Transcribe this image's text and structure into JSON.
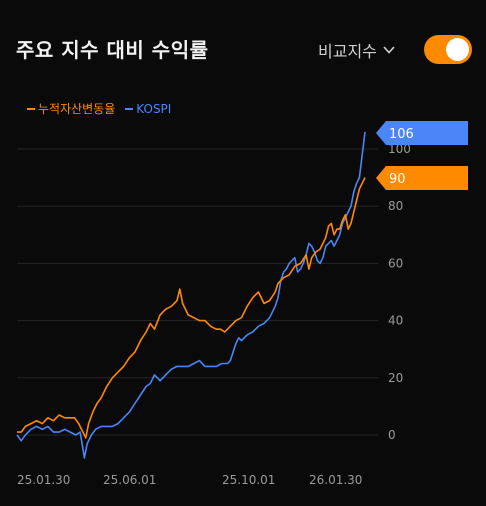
{
  "header": {
    "title": "주요 지수 대비 수익률",
    "compare_label": "비교지수",
    "toggle_on": true
  },
  "colors": {
    "portfolio": "#ff8a00",
    "index": "#4a86f7",
    "grid": "#262626",
    "background": "#0a0a0a"
  },
  "chart_data": {
    "type": "line",
    "x_ticks": [
      "25.01.30",
      "25.06.01",
      "25.10.01",
      "26.01.30"
    ],
    "y_ticks": [
      0,
      20,
      40,
      60,
      80,
      100
    ],
    "ylim": [
      -10,
      110
    ],
    "grid": true,
    "legend_position": "top-left",
    "series": [
      {
        "name": "누적자산변동율",
        "color": "#ff8a00",
        "last_value": "90",
        "points": [
          [
            0,
            1
          ],
          [
            3,
            1
          ],
          [
            6,
            3
          ],
          [
            10,
            4
          ],
          [
            14,
            5
          ],
          [
            18,
            4
          ],
          [
            22,
            6
          ],
          [
            26,
            5
          ],
          [
            30,
            7
          ],
          [
            34,
            6
          ],
          [
            38,
            6
          ],
          [
            41,
            6
          ],
          [
            44,
            4
          ],
          [
            46,
            2
          ],
          [
            48,
            0
          ],
          [
            49,
            -1
          ],
          [
            51,
            4
          ],
          [
            54,
            8
          ],
          [
            57,
            11
          ],
          [
            60,
            13
          ],
          [
            64,
            17
          ],
          [
            68,
            20
          ],
          [
            72,
            22
          ],
          [
            76,
            24
          ],
          [
            80,
            27
          ],
          [
            84,
            29
          ],
          [
            88,
            33
          ],
          [
            92,
            36
          ],
          [
            95,
            39
          ],
          [
            98,
            37
          ],
          [
            102,
            42
          ],
          [
            106,
            44
          ],
          [
            110,
            45
          ],
          [
            112,
            46
          ],
          [
            114,
            47
          ],
          [
            116,
            51
          ],
          [
            118,
            46
          ],
          [
            120,
            44
          ],
          [
            122,
            42
          ],
          [
            126,
            41
          ],
          [
            130,
            40
          ],
          [
            134,
            40
          ],
          [
            138,
            38
          ],
          [
            142,
            37
          ],
          [
            145,
            37
          ],
          [
            148,
            36
          ],
          [
            152,
            38
          ],
          [
            156,
            40
          ],
          [
            160,
            41
          ],
          [
            164,
            45
          ],
          [
            168,
            48
          ],
          [
            172,
            50
          ],
          [
            176,
            46
          ],
          [
            180,
            47
          ],
          [
            184,
            50
          ],
          [
            186,
            53
          ],
          [
            190,
            55
          ],
          [
            194,
            56
          ],
          [
            198,
            59
          ],
          [
            202,
            60
          ],
          [
            206,
            63
          ],
          [
            208,
            58
          ],
          [
            210,
            62
          ],
          [
            213,
            64
          ],
          [
            216,
            65
          ],
          [
            218,
            67
          ],
          [
            220,
            69
          ],
          [
            222,
            73
          ],
          [
            224,
            74
          ],
          [
            226,
            70
          ],
          [
            228,
            72
          ],
          [
            230,
            72
          ],
          [
            232,
            75
          ],
          [
            234,
            77
          ],
          [
            236,
            72
          ],
          [
            238,
            74
          ],
          [
            240,
            78
          ],
          [
            242,
            82
          ],
          [
            244,
            86
          ],
          [
            246,
            88
          ],
          [
            248,
            90
          ]
        ]
      },
      {
        "name": "KOSPI",
        "color": "#4a86f7",
        "last_value": "106",
        "points": [
          [
            0,
            0
          ],
          [
            3,
            -2
          ],
          [
            6,
            0
          ],
          [
            10,
            2
          ],
          [
            14,
            3
          ],
          [
            18,
            2
          ],
          [
            22,
            3
          ],
          [
            26,
            1
          ],
          [
            30,
            1
          ],
          [
            34,
            2
          ],
          [
            38,
            1
          ],
          [
            42,
            0
          ],
          [
            45,
            1
          ],
          [
            47,
            -5
          ],
          [
            48,
            -8
          ],
          [
            50,
            -3
          ],
          [
            53,
            0
          ],
          [
            56,
            2
          ],
          [
            60,
            3
          ],
          [
            64,
            3
          ],
          [
            68,
            3
          ],
          [
            72,
            4
          ],
          [
            76,
            6
          ],
          [
            80,
            8
          ],
          [
            84,
            11
          ],
          [
            88,
            14
          ],
          [
            92,
            17
          ],
          [
            95,
            18
          ],
          [
            98,
            21
          ],
          [
            102,
            19
          ],
          [
            106,
            21
          ],
          [
            110,
            23
          ],
          [
            114,
            24
          ],
          [
            118,
            24
          ],
          [
            122,
            24
          ],
          [
            126,
            25
          ],
          [
            130,
            26
          ],
          [
            134,
            24
          ],
          [
            138,
            24
          ],
          [
            142,
            24
          ],
          [
            146,
            25
          ],
          [
            150,
            25
          ],
          [
            152,
            26
          ],
          [
            154,
            29
          ],
          [
            156,
            32
          ],
          [
            158,
            34
          ],
          [
            160,
            33
          ],
          [
            164,
            35
          ],
          [
            168,
            36
          ],
          [
            172,
            38
          ],
          [
            176,
            39
          ],
          [
            180,
            41
          ],
          [
            184,
            45
          ],
          [
            186,
            48
          ],
          [
            188,
            54
          ],
          [
            190,
            57
          ],
          [
            192,
            58
          ],
          [
            194,
            60
          ],
          [
            196,
            61
          ],
          [
            198,
            62
          ],
          [
            200,
            57
          ],
          [
            202,
            58
          ],
          [
            204,
            60
          ],
          [
            206,
            63
          ],
          [
            208,
            67
          ],
          [
            210,
            66
          ],
          [
            212,
            64
          ],
          [
            214,
            61
          ],
          [
            216,
            60
          ],
          [
            218,
            62
          ],
          [
            220,
            66
          ],
          [
            222,
            67
          ],
          [
            224,
            68
          ],
          [
            226,
            66
          ],
          [
            228,
            68
          ],
          [
            230,
            70
          ],
          [
            232,
            74
          ],
          [
            234,
            76
          ],
          [
            236,
            78
          ],
          [
            238,
            80
          ],
          [
            240,
            85
          ],
          [
            242,
            88
          ],
          [
            244,
            90
          ],
          [
            245,
            94
          ],
          [
            246,
            98
          ],
          [
            247,
            102
          ],
          [
            248,
            106
          ]
        ]
      }
    ]
  }
}
